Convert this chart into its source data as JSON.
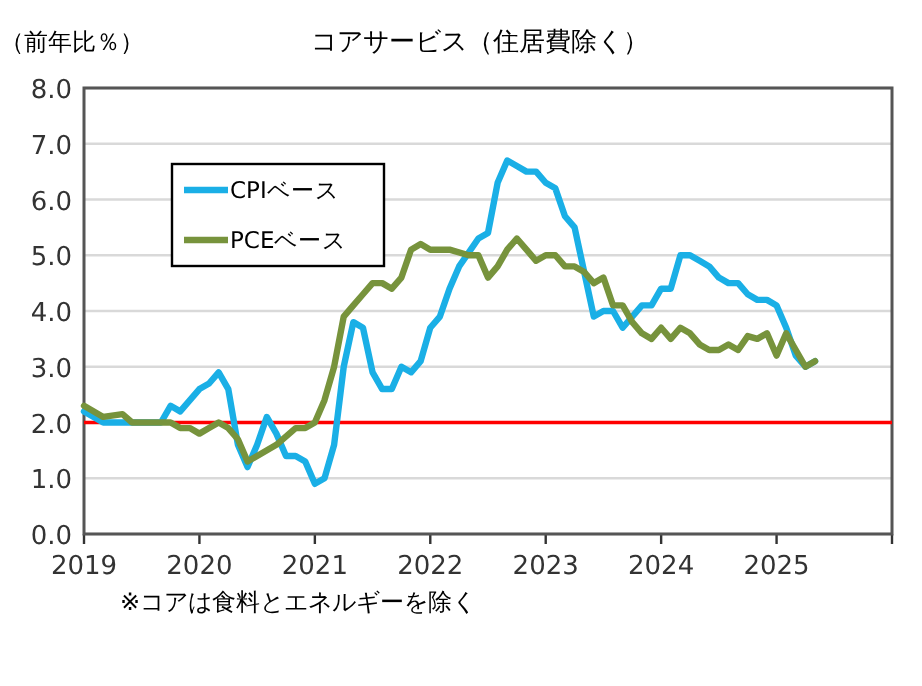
{
  "chart_data": {
    "type": "line",
    "title": "コアサービス（住居費除く）",
    "ylabel": "（前年比％）",
    "annotations": [
      "※コアは食料とエネルギーを除く"
    ],
    "xlim": [
      "2019-01",
      "2026-01"
    ],
    "xticks": [
      {
        "value": "2019-01",
        "label": "2019"
      },
      {
        "value": "2020-01",
        "label": "2020"
      },
      {
        "value": "2021-01",
        "label": "2021"
      },
      {
        "value": "2022-01",
        "label": "2022"
      },
      {
        "value": "2023-01",
        "label": "2023"
      },
      {
        "value": "2024-01",
        "label": "2024"
      },
      {
        "value": "2025-01",
        "label": "2025"
      },
      {
        "value": "2026-01",
        "label": null
      }
    ],
    "ylim": [
      0,
      8
    ],
    "yticks": [
      {
        "value": 0,
        "label": "0.0"
      },
      {
        "value": 1,
        "label": "1.0"
      },
      {
        "value": 2,
        "label": "2.0"
      },
      {
        "value": 3,
        "label": "3.0"
      },
      {
        "value": 4,
        "label": "4.0"
      },
      {
        "value": 5,
        "label": "5.0"
      },
      {
        "value": 6,
        "label": "6.0"
      },
      {
        "value": 7,
        "label": "7.0"
      },
      {
        "value": 8,
        "label": "8.0"
      }
    ],
    "grid": "y",
    "legend": "top left",
    "ref_lines": [
      {
        "axis": "y",
        "value": 2,
        "label": null,
        "color": "#ff0000"
      }
    ],
    "series": [
      {
        "name": "CPIベース",
        "color": "#1aafe6",
        "x": [
          "2019-01",
          "2019-03",
          "2019-06",
          "2019-09",
          "2019-10",
          "2019-11",
          "2020-01",
          "2020-02",
          "2020-03",
          "2020-04",
          "2020-05",
          "2020-06",
          "2020-07",
          "2020-08",
          "2020-09",
          "2020-10",
          "2020-11",
          "2020-12",
          "2021-01",
          "2021-02",
          "2021-03",
          "2021-04",
          "2021-05",
          "2021-06",
          "2021-07",
          "2021-08",
          "2021-09",
          "2021-10",
          "2021-11",
          "2021-12",
          "2022-01",
          "2022-02",
          "2022-03",
          "2022-04",
          "2022-06",
          "2022-07",
          "2022-08",
          "2022-09",
          "2022-10",
          "2022-11",
          "2022-12",
          "2023-01",
          "2023-02",
          "2023-03",
          "2023-04",
          "2023-05",
          "2023-06",
          "2023-07",
          "2023-08",
          "2023-09",
          "2023-10",
          "2023-11",
          "2023-12",
          "2024-01",
          "2024-02",
          "2024-03",
          "2024-04",
          "2024-05",
          "2024-06",
          "2024-07",
          "2024-08",
          "2024-09",
          "2024-10",
          "2024-11",
          "2024-12",
          "2025-01",
          "2025-02",
          "2025-03",
          "2025-04",
          "2025-05"
        ],
        "values": [
          2.2,
          2.0,
          2.0,
          2.0,
          2.3,
          2.2,
          2.6,
          2.7,
          2.9,
          2.6,
          1.6,
          1.2,
          1.6,
          2.1,
          1.8,
          1.4,
          1.4,
          1.3,
          0.9,
          1.0,
          1.6,
          3.0,
          3.8,
          3.7,
          2.9,
          2.6,
          2.6,
          3.0,
          2.9,
          3.1,
          3.7,
          3.9,
          4.4,
          4.8,
          5.3,
          5.4,
          6.3,
          6.7,
          6.6,
          6.5,
          6.5,
          6.3,
          6.2,
          5.7,
          5.5,
          4.7,
          3.9,
          4.0,
          4.0,
          3.7,
          3.9,
          4.1,
          4.1,
          4.4,
          4.4,
          5.0,
          5.0,
          4.9,
          4.8,
          4.6,
          4.5,
          4.5,
          4.3,
          4.2,
          4.2,
          4.1,
          3.7,
          3.2,
          3.0,
          3.1
        ]
      },
      {
        "name": "PCEベース",
        "color": "#77933c",
        "x": [
          "2019-01",
          "2019-03",
          "2019-05",
          "2019-06",
          "2019-09",
          "2019-10",
          "2019-11",
          "2019-12",
          "2020-01",
          "2020-02",
          "2020-03",
          "2020-04",
          "2020-05",
          "2020-06",
          "2020-07",
          "2020-09",
          "2020-11",
          "2020-12",
          "2021-01",
          "2021-02",
          "2021-03",
          "2021-04",
          "2021-05",
          "2021-06",
          "2021-07",
          "2021-08",
          "2021-09",
          "2021-10",
          "2021-11",
          "2021-12",
          "2022-01",
          "2022-03",
          "2022-05",
          "2022-06",
          "2022-07",
          "2022-08",
          "2022-09",
          "2022-10",
          "2022-11",
          "2022-12",
          "2023-01",
          "2023-02",
          "2023-03",
          "2023-04",
          "2023-05",
          "2023-06",
          "2023-07",
          "2023-08",
          "2023-09",
          "2023-10",
          "2023-11",
          "2023-12",
          "2024-01",
          "2024-02",
          "2024-03",
          "2024-04",
          "2024-05",
          "2024-06",
          "2024-07",
          "2024-08",
          "2024-09",
          "2024-10",
          "2024-11",
          "2024-12",
          "2025-01",
          "2025-02",
          "2025-03",
          "2025-04",
          "2025-05"
        ],
        "values": [
          2.3,
          2.1,
          2.15,
          2.0,
          2.0,
          2.0,
          1.9,
          1.9,
          1.8,
          1.9,
          2.0,
          1.9,
          1.7,
          1.3,
          1.4,
          1.6,
          1.9,
          1.9,
          2.0,
          2.4,
          3.0,
          3.9,
          4.1,
          4.3,
          4.5,
          4.5,
          4.4,
          4.6,
          5.1,
          5.2,
          5.1,
          5.1,
          5.0,
          5.0,
          4.6,
          4.8,
          5.1,
          5.3,
          5.1,
          4.9,
          5.0,
          5.0,
          4.8,
          4.8,
          4.7,
          4.5,
          4.6,
          4.1,
          4.1,
          3.8,
          3.6,
          3.5,
          3.7,
          3.5,
          3.7,
          3.6,
          3.4,
          3.3,
          3.3,
          3.4,
          3.3,
          3.55,
          3.5,
          3.6,
          3.2,
          3.6,
          3.3,
          3.0,
          3.1
        ]
      }
    ]
  }
}
